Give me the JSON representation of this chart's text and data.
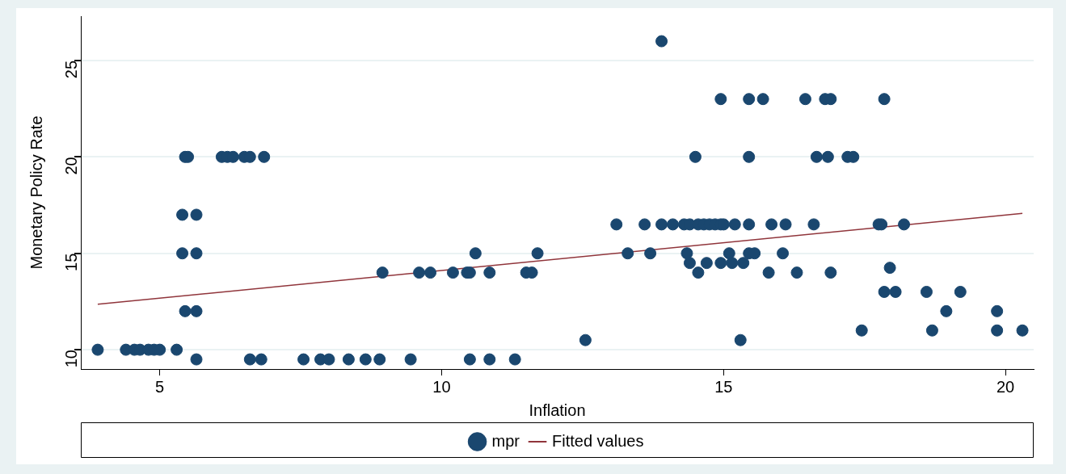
{
  "chart_data": {
    "type": "scatter",
    "xlabel": "Inflation",
    "ylabel": "Monetary Policy Rate",
    "xlim": [
      3.6,
      20.5
    ],
    "ylim": [
      9,
      27.3
    ],
    "xticks": [
      5,
      10,
      15,
      20
    ],
    "yticks": [
      10,
      15,
      20,
      25
    ],
    "grid": "y",
    "legend": "bottom",
    "series": [
      {
        "name": "mpr",
        "marker": "circle",
        "color": "#1a476f",
        "x": [
          3.9,
          4.4,
          4.55,
          4.65,
          4.8,
          4.9,
          5.0,
          5.3,
          5.65,
          6.6,
          6.8,
          7.55,
          7.85,
          8.0,
          8.35,
          8.65,
          8.9,
          9.45,
          10.5,
          10.85,
          11.3,
          5.45,
          5.5,
          6.1,
          6.2,
          6.3,
          6.5,
          6.6,
          6.85,
          14.5,
          15.45,
          16.65,
          16.85,
          17.2,
          17.3,
          5.4,
          5.65,
          5.4,
          5.65,
          10.6,
          11.7,
          13.3,
          13.7,
          14.35,
          15.1,
          15.45,
          15.55,
          16.05,
          5.45,
          5.65,
          18.95,
          19.85,
          8.95,
          9.6,
          9.8,
          10.2,
          10.45,
          10.5,
          10.85,
          11.5,
          11.6,
          14.55,
          15.8,
          16.3,
          16.9,
          14.4,
          14.7,
          14.95,
          15.15,
          15.35,
          17.95,
          17.85,
          18.05,
          18.6,
          19.2,
          17.45,
          18.7,
          19.85,
          20.3,
          12.55,
          15.3,
          13.1,
          13.6,
          13.9,
          14.1,
          14.3,
          14.4,
          14.55,
          14.65,
          14.75,
          14.85,
          14.95,
          15.0,
          15.2,
          15.45,
          15.85,
          16.1,
          16.6,
          17.75,
          17.8,
          18.2,
          14.95,
          15.45,
          15.7,
          16.45,
          16.8,
          16.9,
          17.85,
          13.9
        ],
        "values": [
          10,
          10,
          10,
          10,
          10,
          10,
          10,
          10,
          9.5,
          9.5,
          9.5,
          9.5,
          9.5,
          9.5,
          9.5,
          9.5,
          9.5,
          9.5,
          9.5,
          9.5,
          9.5,
          20,
          20,
          20,
          20,
          20,
          20,
          20,
          20,
          20,
          20,
          20,
          20,
          20,
          20,
          17,
          17,
          15,
          15,
          15,
          15,
          15,
          15,
          15,
          15,
          15,
          15,
          15,
          12,
          12,
          12,
          12,
          14,
          14,
          14,
          14,
          14,
          14,
          14,
          14,
          14,
          14,
          14,
          14,
          14,
          14.5,
          14.5,
          14.5,
          14.5,
          14.5,
          14.25,
          13,
          13,
          13,
          13,
          11,
          11,
          11,
          11,
          10.5,
          10.5,
          16.5,
          16.5,
          16.5,
          16.5,
          16.5,
          16.5,
          16.5,
          16.5,
          16.5,
          16.5,
          16.5,
          16.5,
          16.5,
          16.5,
          16.5,
          16.5,
          16.5,
          16.5,
          16.5,
          16.5,
          23,
          23,
          23,
          23,
          23,
          23,
          23,
          26
        ]
      },
      {
        "name": "Fitted values",
        "type": "line",
        "marker": "none",
        "line_style": "solid",
        "color": "#90353b",
        "x": [
          3.9,
          20.3
        ],
        "values": [
          12.36,
          17.07
        ]
      }
    ]
  }
}
